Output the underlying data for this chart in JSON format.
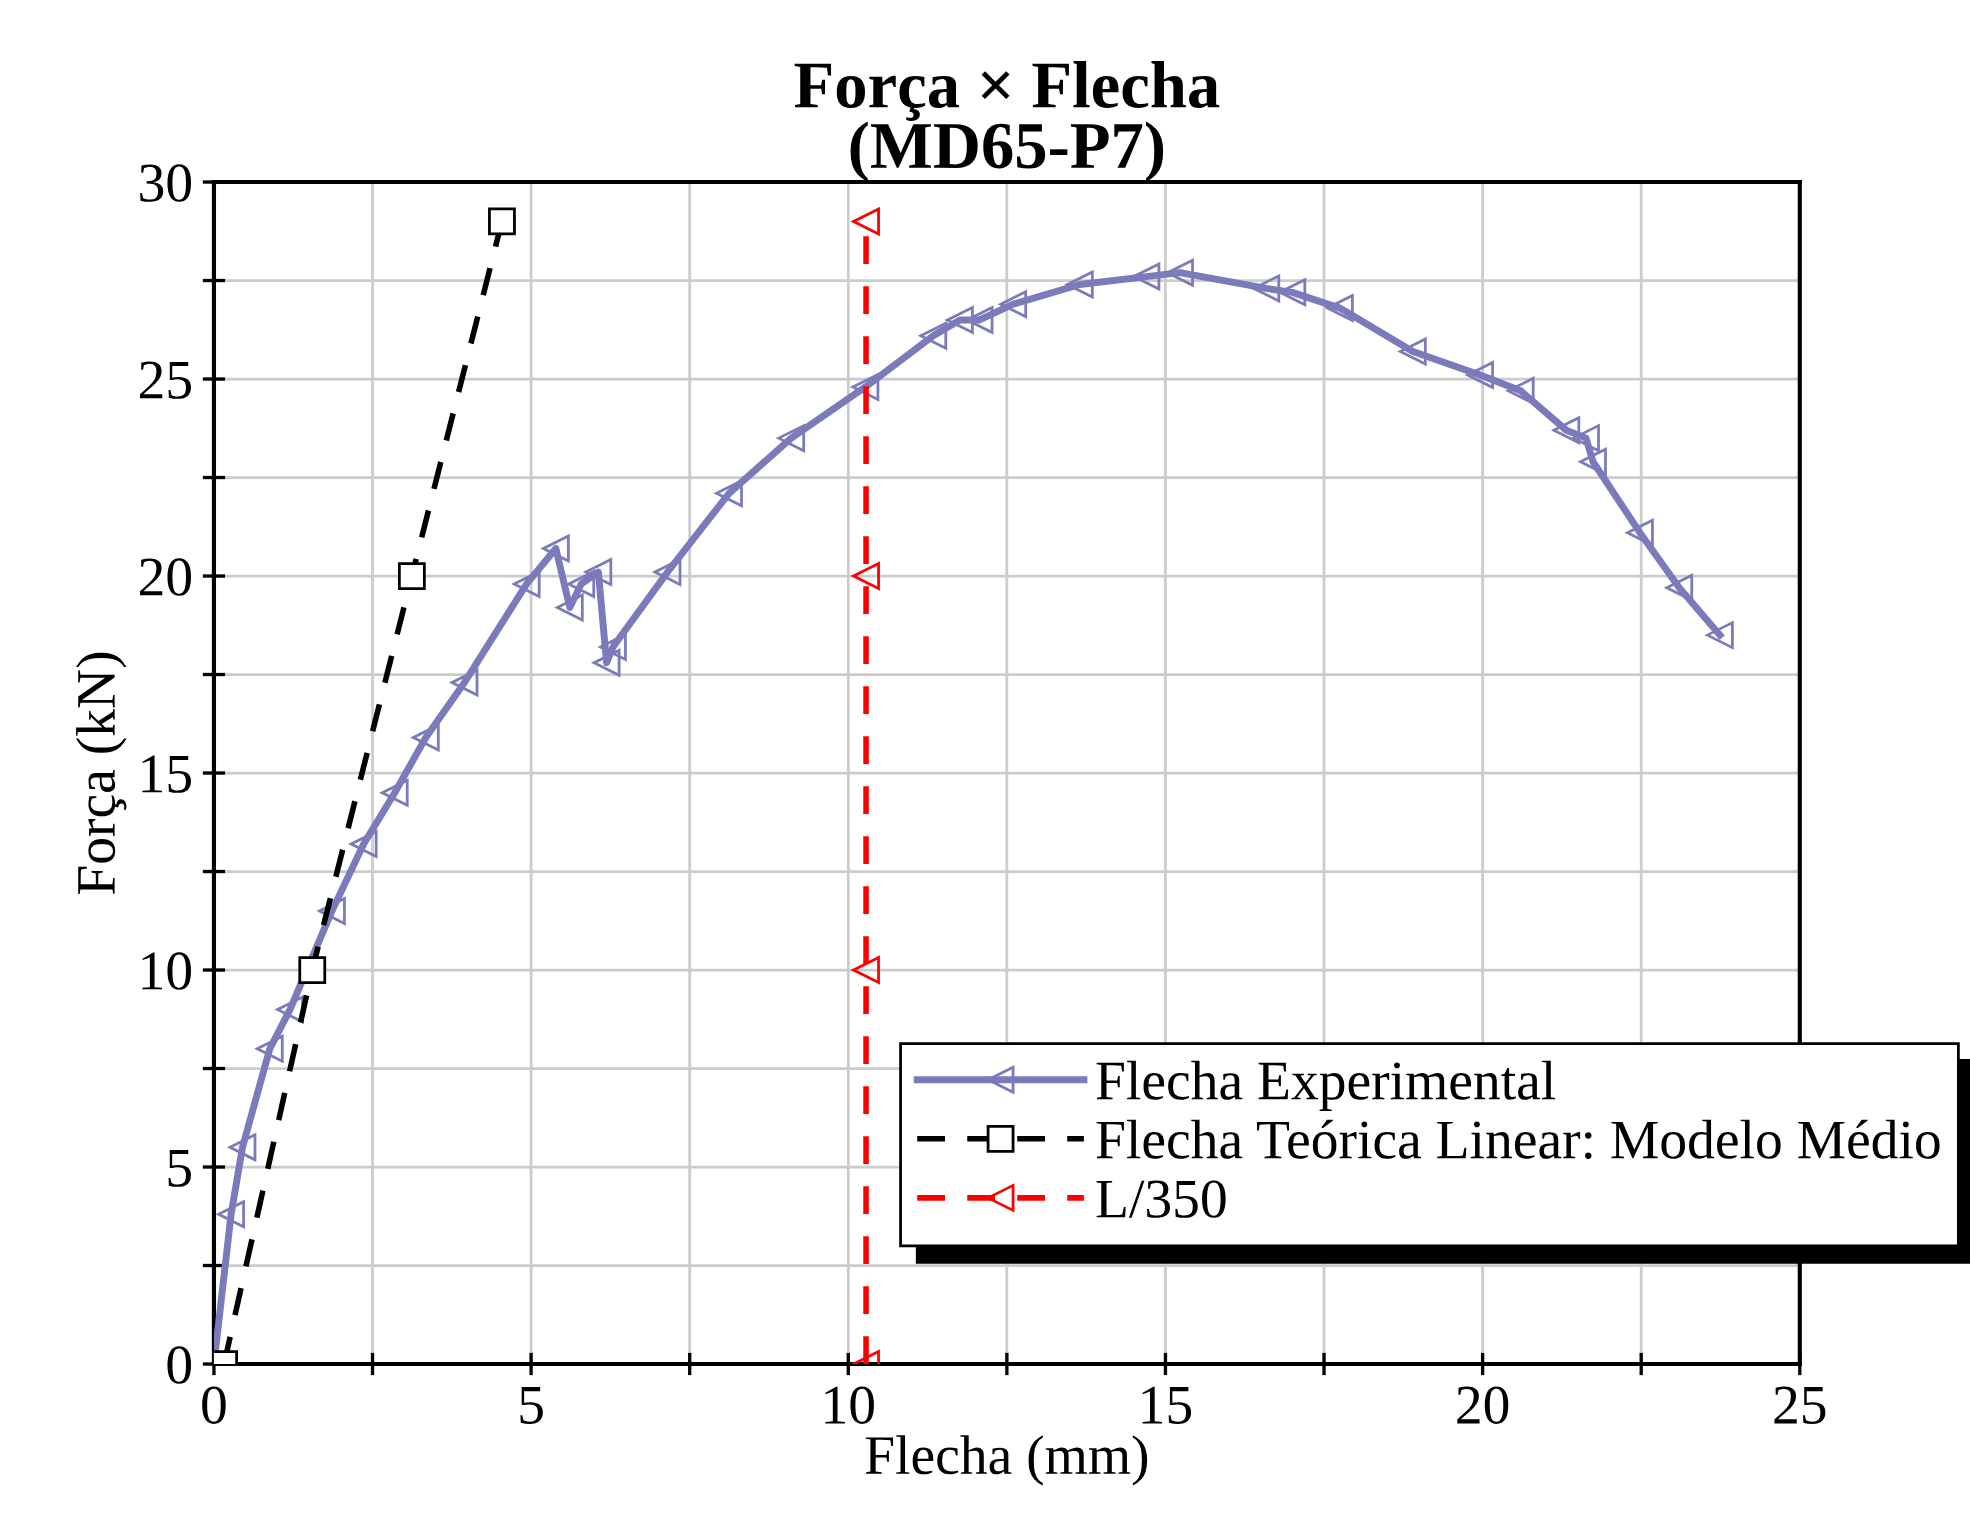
{
  "chart_data": {
    "type": "line",
    "title": "Força × Flecha\n(MD65-P7)",
    "xlabel": "Flecha (mm)",
    "ylabel": "Força (kN)",
    "xlim": [
      0,
      25
    ],
    "ylim": [
      0,
      30
    ],
    "xticks": [
      0,
      {
        "value": 2.5,
        "label": null
      },
      5,
      {
        "value": 7.5,
        "label": null
      },
      10,
      {
        "value": 12.5,
        "label": null
      },
      15,
      {
        "value": 17.5,
        "label": null
      },
      20,
      {
        "value": 22.5,
        "label": null
      },
      25
    ],
    "yticks": [
      0,
      {
        "value": 2.5,
        "label": null
      },
      5,
      {
        "value": 7.5,
        "label": null
      },
      10,
      {
        "value": 12.5,
        "label": null
      },
      15,
      {
        "value": 17.5,
        "label": null
      },
      20,
      {
        "value": 22.5,
        "label": null
      },
      25,
      {
        "value": 27.5,
        "label": null
      },
      30
    ],
    "grid": true,
    "legend": "bottom right",
    "series": [
      {
        "name": "Flecha Experimental",
        "color": "#7b7bbb",
        "marker": "triangle",
        "line_style": "solid",
        "x": [
          0,
          0.27,
          0.45,
          0.88,
          1.2,
          1.86,
          2.36,
          2.85,
          3.34,
          3.95,
          4.93,
          5.39,
          5.61,
          5.79,
          6.06,
          6.19,
          6.29,
          7.15,
          8.12,
          9.1,
          10.27,
          11.34,
          11.76,
          12.07,
          12.6,
          13.65,
          14.7,
          15.23,
          16.59,
          17.0,
          17.75,
          18.9,
          19.96,
          20.6,
          21.32,
          21.63,
          21.74,
          22.48,
          23.1,
          23.74
        ],
        "values": [
          0,
          3.8,
          5.5,
          8.0,
          9.0,
          11.5,
          13.2,
          14.5,
          15.9,
          17.3,
          19.8,
          20.7,
          19.2,
          19.8,
          20.1,
          17.8,
          18.2,
          20.1,
          22.1,
          23.5,
          24.8,
          26.1,
          26.5,
          26.5,
          26.9,
          27.4,
          27.6,
          27.7,
          27.3,
          27.2,
          26.8,
          25.7,
          25.1,
          24.7,
          23.7,
          23.5,
          22.9,
          21.1,
          19.7,
          18.5
        ]
      },
      {
        "name": "Flecha Teórica Linear: Modelo Médio",
        "color": "#000000",
        "marker": "square",
        "line_style": "dashed",
        "x": [
          0.16,
          1.55,
          3.12,
          4.54
        ],
        "values": [
          0,
          10,
          20,
          29
        ]
      },
      {
        "name": "L/350",
        "color": "#ff0000",
        "marker": "triangle",
        "line_style": "dashed",
        "x": [
          10.28,
          10.28,
          10.28,
          10.28
        ],
        "values": [
          0,
          10,
          20,
          29
        ]
      }
    ]
  }
}
